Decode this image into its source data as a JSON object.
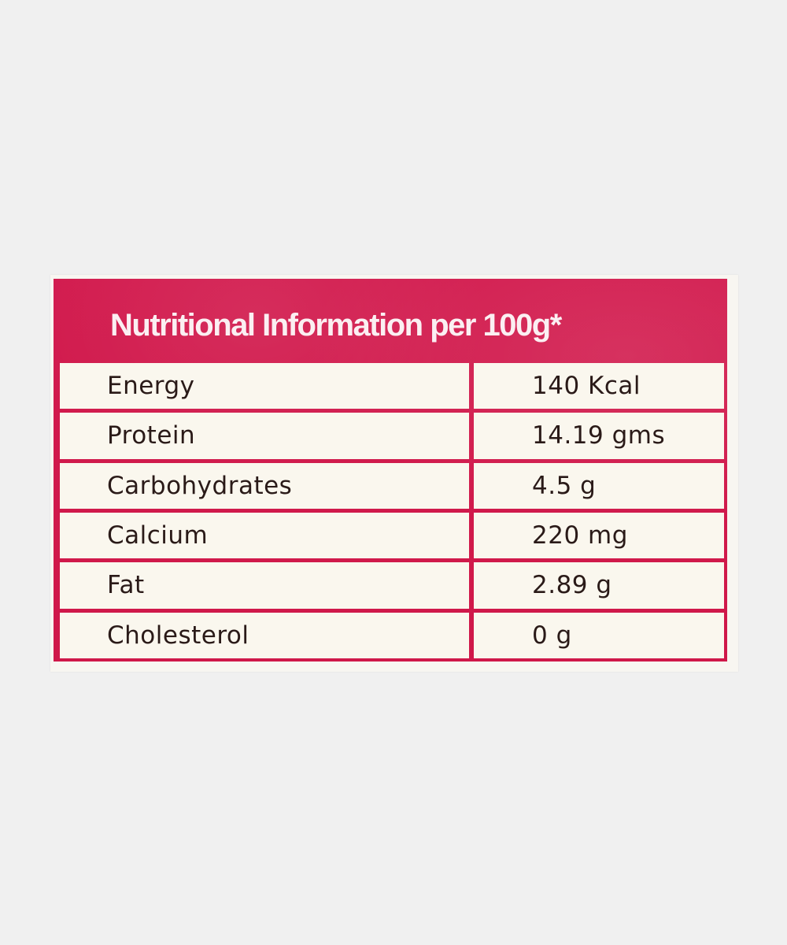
{
  "label": {
    "title": "Nutritional Information per 100g*",
    "rows": [
      {
        "nutrient": "Energy",
        "value": "140 Kcal"
      },
      {
        "nutrient": "Protein",
        "value": "14.19 gms"
      },
      {
        "nutrient": "Carbohydrates",
        "value": "4.5 g"
      },
      {
        "nutrient": "Calcium",
        "value": "220 mg"
      },
      {
        "nutrient": "Fat",
        "value": "2.89 g"
      },
      {
        "nutrient": "Cholesterol",
        "value": "0 g"
      }
    ]
  },
  "colors": {
    "page_background": "#f0f0f0",
    "label_red": "#d31a4d",
    "cell_background": "#faf7ee",
    "text_dark": "#2a1a18",
    "title_text": "#fbeff2"
  }
}
